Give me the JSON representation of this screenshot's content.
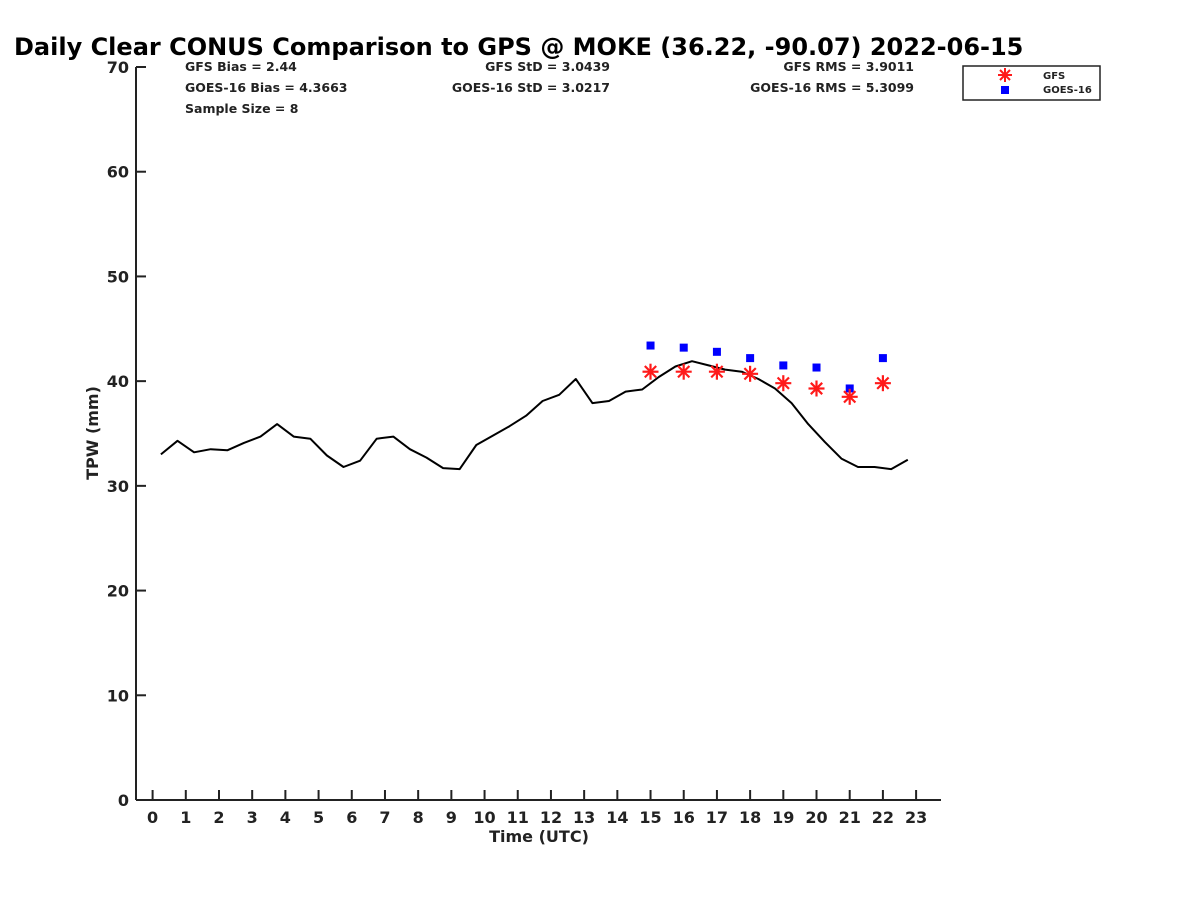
{
  "chart_data": {
    "type": "line",
    "title": "Daily Clear CONUS Comparison to GPS @ MOKE (36.22, -90.07) 2022-06-15",
    "xlabel": "Time (UTC)",
    "ylabel": "TPW (mm)",
    "xlim": [
      -0.5,
      23.75
    ],
    "ylim": [
      0,
      70
    ],
    "xticks": [
      "0",
      "1",
      "2",
      "3",
      "4",
      "5",
      "6",
      "7",
      "8",
      "9",
      "10",
      "11",
      "12",
      "13",
      "14",
      "15",
      "16",
      "17",
      "18",
      "19",
      "20",
      "21",
      "22",
      "23"
    ],
    "yticks": [
      "0",
      "10",
      "20",
      "30",
      "40",
      "50",
      "60",
      "70"
    ],
    "grid": false,
    "legend_position": "top-right",
    "stats": {
      "gfs_bias": "GFS Bias = 2.44",
      "goes_bias": "GOES-16 Bias = 4.3663",
      "sample_size": "Sample Size = 8",
      "gfs_std": "GFS StD = 3.0439",
      "goes_std": "GOES-16 StD = 3.0217",
      "gfs_rms": "GFS RMS = 3.9011",
      "goes_rms": "GOES-16 RMS = 5.3099"
    },
    "series": [
      {
        "kind": "line",
        "color": "#000000",
        "x": [
          0.25,
          0.75,
          1.25,
          1.75,
          2.25,
          2.75,
          3.25,
          3.75,
          4.25,
          4.75,
          5.25,
          5.75,
          6.25,
          6.75,
          7.25,
          7.75,
          8.25,
          8.75,
          9.25,
          9.75,
          10.25,
          10.75,
          11.25,
          11.75,
          12.25,
          12.75,
          13.25,
          13.75,
          14.25,
          14.75,
          15.25,
          15.75,
          16.25,
          16.75,
          17.25,
          17.75,
          18.25,
          18.75,
          19.25,
          19.75,
          20.25,
          20.75,
          21.25,
          21.75,
          22.25,
          22.75
        ],
        "y": [
          33.0,
          34.3,
          33.2,
          33.5,
          33.4,
          34.1,
          34.7,
          35.9,
          34.7,
          34.5,
          32.9,
          31.8,
          32.4,
          34.5,
          34.7,
          33.5,
          32.7,
          31.7,
          31.6,
          33.9,
          34.8,
          35.7,
          36.7,
          38.1,
          38.7,
          40.2,
          37.9,
          38.1,
          39.0,
          39.2,
          40.4,
          41.4,
          41.9,
          41.5,
          41.1,
          40.9,
          40.2,
          39.3,
          37.9,
          35.9,
          34.2,
          32.6,
          31.8,
          31.8,
          31.6,
          32.5
        ]
      },
      {
        "name": "GFS",
        "kind": "scatter",
        "marker": "asterisk",
        "color": "#ff1a1a",
        "x": [
          15,
          16,
          17,
          18,
          19,
          20,
          21,
          22
        ],
        "y": [
          40.9,
          40.9,
          40.9,
          40.7,
          39.8,
          39.3,
          38.5,
          39.8
        ]
      },
      {
        "name": "GOES-16",
        "kind": "scatter",
        "marker": "square",
        "color": "#0000ff",
        "x": [
          15,
          16,
          17,
          18,
          19,
          20,
          21,
          22
        ],
        "y": [
          43.4,
          43.2,
          42.8,
          42.2,
          41.5,
          41.3,
          39.3,
          42.2
        ]
      }
    ]
  }
}
